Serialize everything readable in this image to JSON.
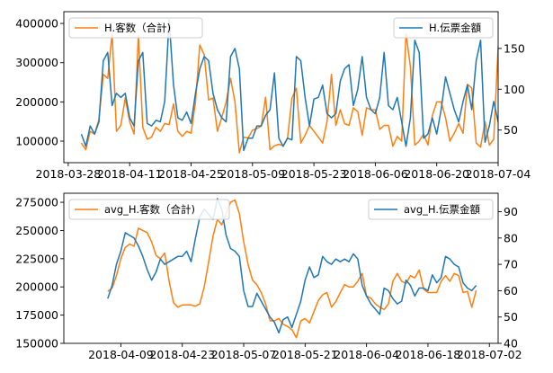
{
  "chart_data": [
    {
      "type": "line",
      "title": "",
      "xlabel": "",
      "ylabel": "",
      "x_ticks": [
        "2018-03-28",
        "2018-04-11",
        "2018-04-25",
        "2018-05-09",
        "2018-05-23",
        "2018-06-06",
        "2018-06-20",
        "2018-07-04"
      ],
      "y_left_ticks": [
        "100000",
        "200000",
        "300000",
        "400000"
      ],
      "y_right_ticks": [
        "50",
        "100",
        "150"
      ],
      "ylim_left": [
        45000,
        430000
      ],
      "ylim_right": [
        10,
        195
      ],
      "xlim": [
        "2018-03-27",
        "2018-07-04"
      ],
      "legend_left": {
        "label": "H.客数（合計)",
        "position": "upper-left"
      },
      "legend_right": {
        "label": "H.伝票金額",
        "position": "upper-right"
      },
      "grid": false,
      "series": [
        {
          "name": "H.客数（合計)",
          "axis": "left",
          "color": "#ff7f0e",
          "x_start": "2018-03-31",
          "values": [
            95000,
            78000,
            125000,
            118000,
            155000,
            270000,
            260000,
            375000,
            125000,
            140000,
            210000,
            150000,
            118000,
            370000,
            135000,
            105000,
            110000,
            135000,
            125000,
            145000,
            142000,
            195000,
            125000,
            112000,
            125000,
            120000,
            200000,
            345000,
            320000,
            205000,
            210000,
            125000,
            160000,
            200000,
            260000,
            200000,
            70000,
            110000,
            108000,
            128000,
            132000,
            138000,
            212000,
            78000,
            88000,
            92000,
            88000,
            108000,
            210000,
            235000,
            95000,
            115000,
            140000,
            125000,
            110000,
            95000,
            150000,
            270000,
            140000,
            180000,
            145000,
            140000,
            185000,
            175000,
            115000,
            185000,
            180000,
            180000,
            130000,
            140000,
            140000,
            87000,
            112000,
            100000,
            375000,
            290000,
            90000,
            100000,
            118000,
            90000,
            165000,
            200000,
            200000,
            160000,
            100000,
            120000,
            145000,
            120000,
            245000,
            235000,
            95000,
            85000,
            150000,
            90000,
            105000,
            340000
          ]
        },
        {
          "name": "H.伝票金額",
          "axis": "right",
          "color": "#1f77b4",
          "x_start": "2018-03-31",
          "values": [
            45,
            30,
            55,
            45,
            60,
            135,
            145,
            80,
            95,
            90,
            95,
            65,
            55,
            135,
            145,
            58,
            55,
            62,
            60,
            85,
            185,
            105,
            65,
            62,
            72,
            58,
            95,
            125,
            140,
            135,
            95,
            75,
            65,
            60,
            140,
            150,
            125,
            25,
            40,
            40,
            55,
            55,
            68,
            75,
            120,
            40,
            30,
            40,
            38,
            140,
            135,
            90,
            55,
            88,
            90,
            105,
            70,
            65,
            70,
            110,
            125,
            130,
            80,
            100,
            140,
            90,
            75,
            70,
            90,
            145,
            80,
            75,
            90,
            60,
            30,
            65,
            160,
            145,
            40,
            45,
            65,
            45,
            75,
            115,
            95,
            75,
            60,
            85,
            105,
            75,
            135,
            160,
            35,
            55,
            85,
            60,
            35,
            45
          ]
        }
      ]
    },
    {
      "type": "line",
      "title": "",
      "xlabel": "",
      "ylabel": "",
      "x_ticks": [
        "2018-04-09",
        "2018-04-23",
        "2018-05-07",
        "2018-05-21",
        "2018-06-04",
        "2018-06-18",
        "2018-07-02"
      ],
      "y_left_ticks": [
        "150000",
        "175000",
        "200000",
        "225000",
        "250000",
        "275000"
      ],
      "y_right_ticks": [
        "40",
        "50",
        "60",
        "70",
        "80",
        "90"
      ],
      "ylim_left": [
        150000,
        283000
      ],
      "ylim_right": [
        40,
        97
      ],
      "xlim": [
        "2018-03-27",
        "2018-07-04"
      ],
      "legend_left": {
        "label": "avg_H.客数（合計)",
        "position": "upper-left"
      },
      "legend_right": {
        "label": "avg_H.伝票金額",
        "position": "upper-right"
      },
      "grid": false,
      "series": [
        {
          "name": "avg_H.客数（合計)",
          "axis": "left",
          "color": "#ff7f0e",
          "x_start": "2018-04-06",
          "values": [
            196000,
            199000,
            210000,
            225000,
            235000,
            238000,
            236000,
            252000,
            250000,
            248000,
            240000,
            228000,
            225000,
            230000,
            205000,
            186000,
            182000,
            184000,
            184000,
            184000,
            183000,
            185000,
            200000,
            222000,
            245000,
            260000,
            255000,
            265000,
            275000,
            277000,
            265000,
            240000,
            220000,
            206000,
            202000,
            195000,
            185000,
            170000,
            170000,
            172000,
            167000,
            165000,
            162000,
            155000,
            170000,
            172000,
            168000,
            178000,
            188000,
            193000,
            195000,
            182000,
            187000,
            195000,
            202000,
            200000,
            200000,
            205000,
            212000,
            192000,
            190000,
            185000,
            182000,
            180000,
            185000,
            205000,
            212000,
            205000,
            203000,
            210000,
            208000,
            215000,
            198000,
            195000,
            195000,
            195000,
            205000,
            210000,
            205000,
            212000,
            210000,
            195000,
            196000,
            182000,
            197000
          ]
        },
        {
          "name": "avg_H.伝票金額",
          "axis": "right",
          "color": "#1f77b4",
          "x_start": "2018-04-06",
          "values": [
            57,
            62,
            70,
            75,
            82,
            81,
            80,
            77,
            73,
            68,
            64,
            67,
            72,
            70,
            71,
            72,
            73,
            73,
            75,
            71,
            80,
            88,
            91,
            89,
            87,
            95,
            91,
            81,
            76,
            75,
            73,
            60,
            54,
            54,
            59,
            56,
            53,
            50,
            48,
            44,
            49,
            50,
            46,
            51,
            56,
            64,
            69,
            65,
            66,
            73,
            71,
            70,
            72,
            71,
            72,
            71,
            74,
            72,
            62,
            58,
            55,
            53,
            51,
            61,
            60,
            57,
            55,
            56,
            64,
            62,
            58,
            61,
            61,
            60,
            66,
            63,
            65,
            73,
            72,
            70,
            69,
            63,
            61,
            60,
            62
          ]
        }
      ]
    }
  ]
}
